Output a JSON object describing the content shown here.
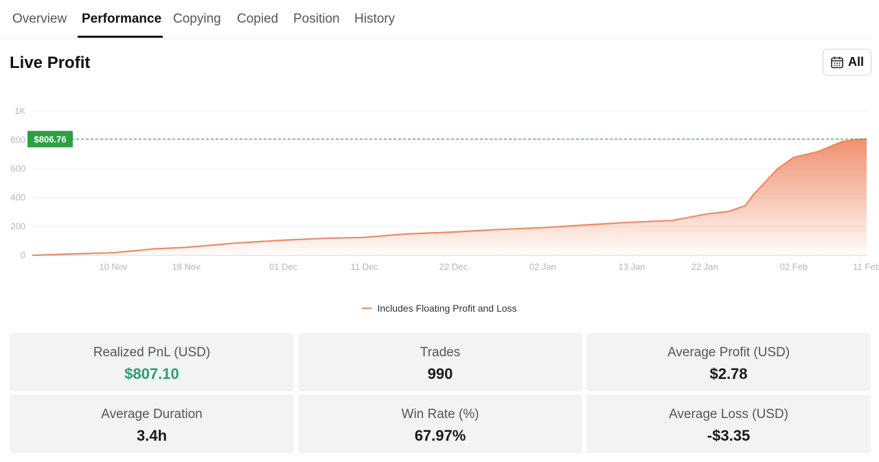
{
  "tabs": [
    {
      "label": "Overview"
    },
    {
      "label": "Performance"
    },
    {
      "label": "Copying"
    },
    {
      "label": "Copied"
    },
    {
      "label": "Position"
    },
    {
      "label": "History"
    }
  ],
  "active_tab": "Performance",
  "page_title": "Live Profit",
  "range_button": {
    "label": "All",
    "icon": "calendar-icon"
  },
  "colors": {
    "accent": "#ee8a65",
    "positive": "#2e9e6f",
    "marker": "#2ea043"
  },
  "chart_data": {
    "type": "area",
    "title": "",
    "xlabel": "",
    "ylabel": "",
    "ylim": [
      0,
      1000
    ],
    "y_ticks": [
      "0",
      "200",
      "400",
      "600",
      "800",
      "1K"
    ],
    "y_tick_values": [
      0,
      200,
      400,
      600,
      800,
      1000
    ],
    "x_ticks": [
      "10 Nov",
      "19 Nov",
      "01 Dec",
      "11 Dec",
      "22 Dec",
      "02 Jan",
      "13 Jan",
      "22 Jan",
      "02 Feb",
      "11 Feb"
    ],
    "grid": true,
    "current_value_label": "$806.76",
    "current_value": 806.76,
    "legend_position": "bottom",
    "series": [
      {
        "name": "Includes Floating Profit and Loss",
        "x": [
          "31 Oct",
          "05 Nov",
          "10 Nov",
          "15 Nov",
          "19 Nov",
          "25 Nov",
          "01 Dec",
          "06 Dec",
          "11 Dec",
          "16 Dec",
          "22 Dec",
          "27 Dec",
          "02 Jan",
          "07 Jan",
          "13 Jan",
          "18 Jan",
          "22 Jan",
          "25 Jan",
          "27 Jan",
          "28 Jan",
          "30 Jan",
          "31 Jan",
          "02 Feb",
          "05 Feb",
          "08 Feb",
          "10 Feb",
          "11 Feb"
        ],
        "values": [
          0,
          10,
          18,
          45,
          55,
          85,
          105,
          118,
          125,
          148,
          162,
          178,
          192,
          210,
          230,
          242,
          285,
          305,
          345,
          420,
          540,
          600,
          680,
          720,
          790,
          805,
          806.76
        ]
      }
    ]
  },
  "stats": [
    {
      "label": "Realized PnL (USD)",
      "value": "$807.10"
    },
    {
      "label": "Trades",
      "value": "990"
    },
    {
      "label": "Average Profit (USD)",
      "value": "$2.78"
    },
    {
      "label": "Average Duration",
      "value": "3.4h"
    },
    {
      "label": "Win Rate (%)",
      "value": "67.97%"
    },
    {
      "label": "Average Loss (USD)",
      "value": "-$3.35"
    }
  ]
}
